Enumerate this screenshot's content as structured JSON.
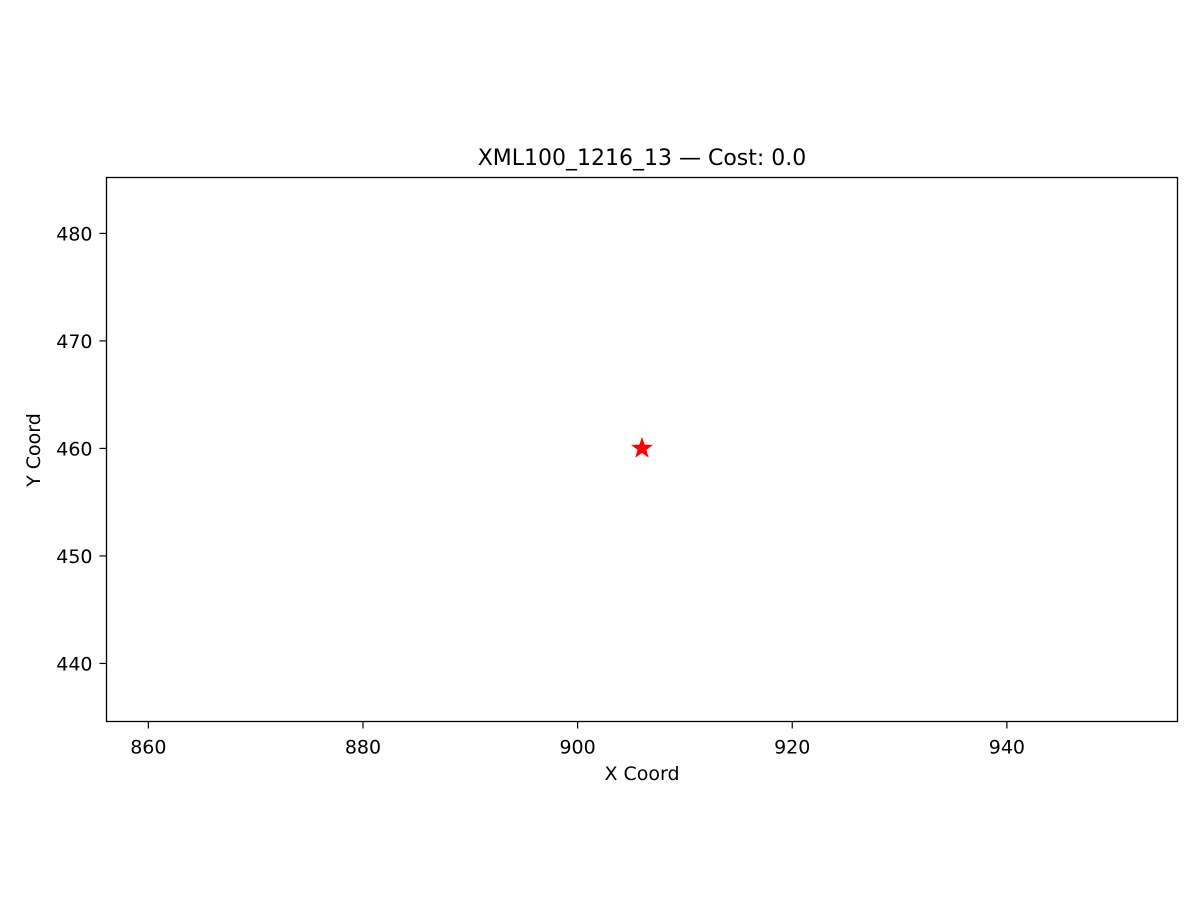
{
  "chart_data": {
    "type": "scatter",
    "title": "XML100_1216_13  —  Cost: 0.0",
    "xlabel": "X Coord",
    "ylabel": "Y Coord",
    "xlim": [
      856.1,
      955.9
    ],
    "ylim": [
      434.6,
      485.2
    ],
    "xticks": [
      860,
      880,
      900,
      920,
      940
    ],
    "yticks": [
      440,
      450,
      460,
      470,
      480
    ],
    "grid": false,
    "series": [
      {
        "marker": "star",
        "color": "#ff0000",
        "points": [
          {
            "x": 906,
            "y": 460
          }
        ]
      }
    ]
  }
}
